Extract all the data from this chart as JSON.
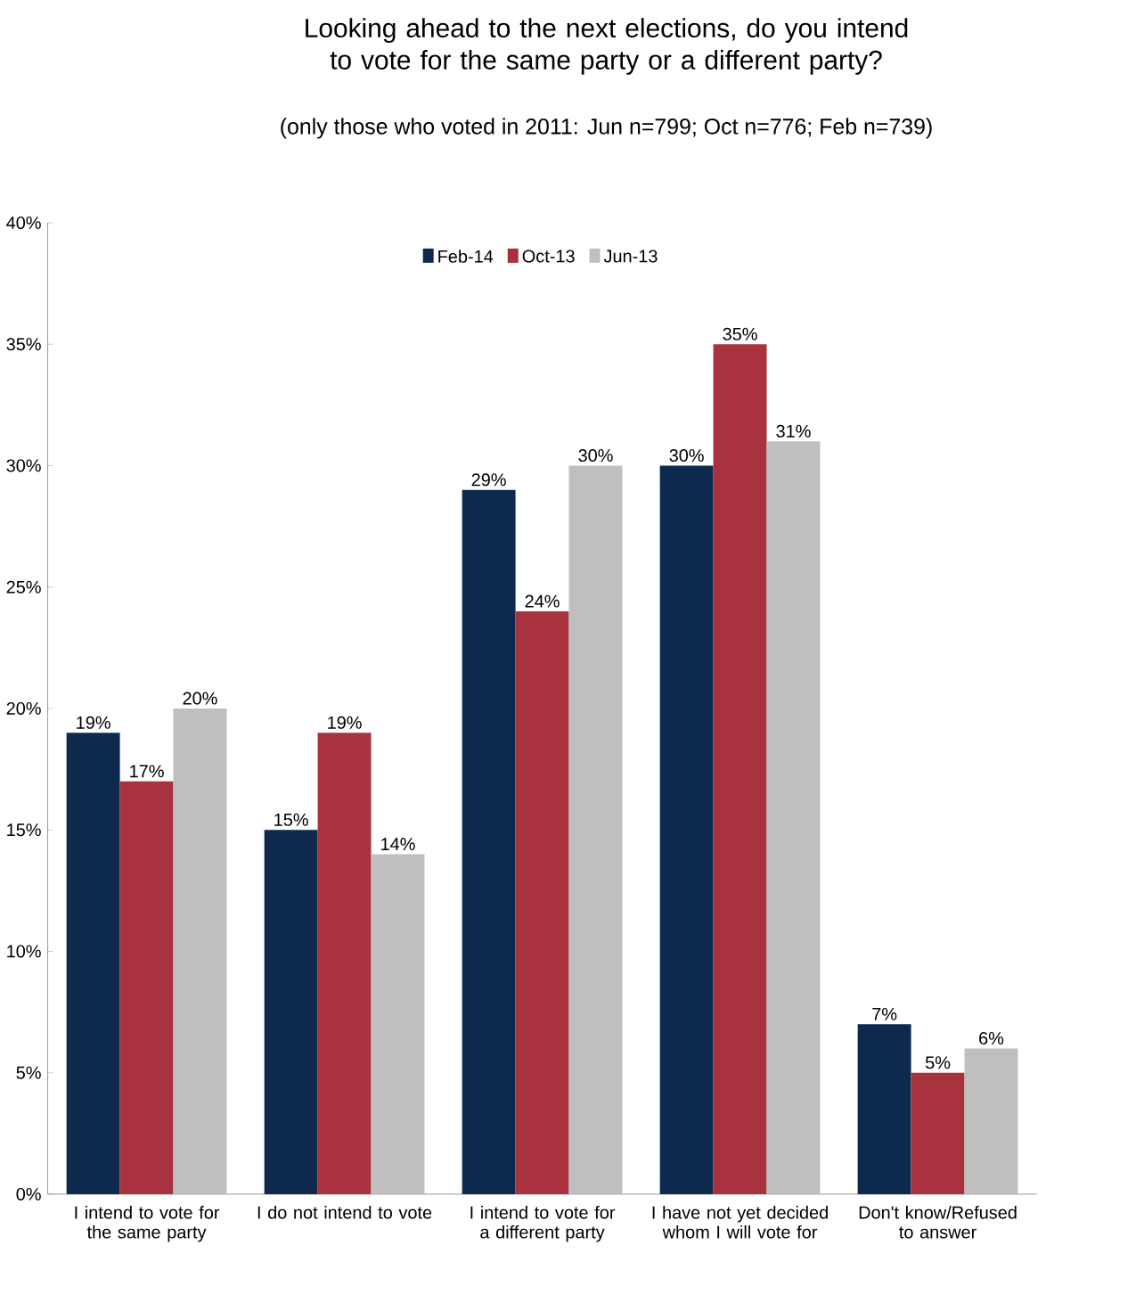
{
  "chart_data": {
    "type": "bar",
    "title": "Looking ahead to the next elections, do you intend to vote for the same party or a different party?",
    "subtitle": "(only those who voted in 2011: Jun n=799; Oct n=776; Feb n=739)",
    "categories": [
      "I intend to vote for the same party",
      "I do not intend to vote",
      "I intend to vote for a different party",
      "I have not yet decided whom I will vote for",
      "Don't know/Refused to answer"
    ],
    "series": [
      {
        "name": "Feb-14",
        "color": "#0d2a4e",
        "values": [
          19,
          15,
          29,
          30,
          7
        ],
        "value_labels": [
          "19%",
          "15%",
          "29%",
          "30%",
          "7%"
        ]
      },
      {
        "name": "Oct-13",
        "color": "#a8323e",
        "values": [
          17,
          19,
          24,
          35,
          5
        ],
        "value_labels": [
          "17%",
          "19%",
          "24%",
          "35%",
          "5%"
        ]
      },
      {
        "name": "Jun-13",
        "color": "#bfbfbf",
        "values": [
          20,
          14,
          30,
          31,
          6
        ],
        "value_labels": [
          "20%",
          "14%",
          "30%",
          "31%",
          "6%"
        ]
      }
    ],
    "ylim": [
      0,
      40
    ],
    "yticks": [
      {
        "value": 0,
        "label": "0%"
      },
      {
        "value": 5,
        "label": "5%"
      },
      {
        "value": 10,
        "label": "10%"
      },
      {
        "value": 15,
        "label": "15%"
      },
      {
        "value": 20,
        "label": "20%"
      },
      {
        "value": 25,
        "label": "25%"
      },
      {
        "value": 30,
        "label": "30%"
      },
      {
        "value": 35,
        "label": "35%"
      },
      {
        "value": 40,
        "label": "40%"
      }
    ],
    "legend": "top",
    "grid": false
  }
}
